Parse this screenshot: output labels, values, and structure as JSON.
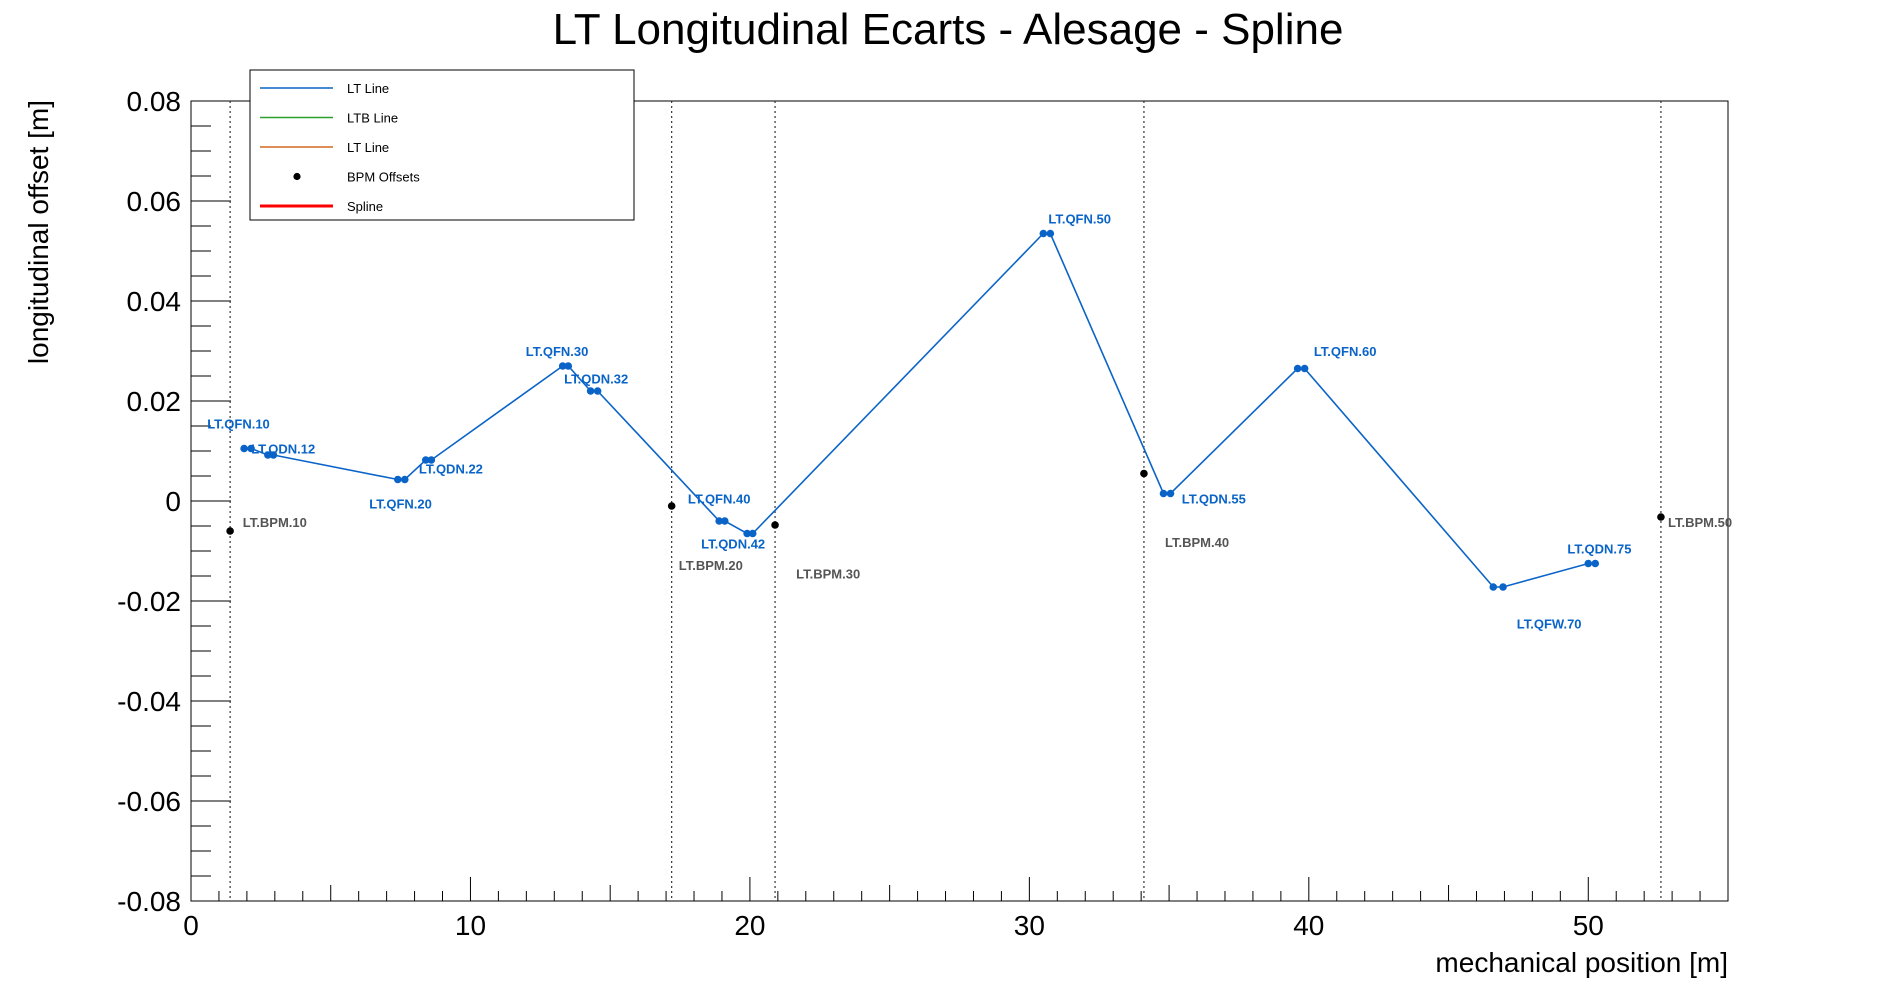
{
  "chart_data": {
    "type": "line",
    "title": "LT Longitudinal Ecarts - Alesage - Spline",
    "xlabel": "mechanical position [m]",
    "ylabel": "longitudinal offset [m]",
    "xlim": [
      0,
      55
    ],
    "ylim": [
      -0.08,
      0.08
    ],
    "x_ticks": [
      "0",
      "10",
      "20",
      "30",
      "40",
      "50"
    ],
    "y_ticks": [
      "-0.08",
      "-0.06",
      "-0.04",
      "-0.02",
      "0",
      "0.02",
      "0.04",
      "0.06",
      "0.08"
    ],
    "grid": false,
    "legend_position": "top-left",
    "legend": [
      {
        "name": "LT Line",
        "kind": "line",
        "color": "#0a64c8"
      },
      {
        "name": "LTB Line",
        "kind": "line",
        "color": "#2ca02c"
      },
      {
        "name": "LT Line",
        "kind": "line",
        "color": "#d2691e"
      },
      {
        "name": "BPM Offsets",
        "kind": "marker",
        "color": "#000000"
      },
      {
        "name": "Spline",
        "kind": "line",
        "color": "#ff0000"
      }
    ],
    "series": [
      {
        "name": "LT Line",
        "color": "#0a64c8",
        "x": [
          1.9,
          2.15,
          2.75,
          2.95,
          7.4,
          7.65,
          8.4,
          8.6,
          13.3,
          13.5,
          14.3,
          14.55,
          18.9,
          19.1,
          19.9,
          20.1,
          30.5,
          30.75,
          34.8,
          35.05,
          39.6,
          39.85,
          46.6,
          46.95,
          50.0,
          50.25
        ],
        "y": [
          0.0105,
          0.0105,
          0.0092,
          0.0092,
          0.0043,
          0.0043,
          0.0082,
          0.0082,
          0.027,
          0.027,
          0.022,
          0.022,
          -0.004,
          -0.004,
          -0.0065,
          -0.0065,
          0.0535,
          0.0535,
          0.0015,
          0.0015,
          0.0265,
          0.0265,
          -0.0172,
          -0.0172,
          -0.0125,
          -0.0125
        ]
      }
    ],
    "bpm_offsets": {
      "name": "BPM Offsets",
      "color": "#000000",
      "x": [
        1.4,
        17.2,
        20.9,
        34.1,
        52.6
      ],
      "y": [
        -0.006,
        -0.001,
        -0.0048,
        0.0055,
        -0.0032
      ]
    },
    "bpm_lines_x": [
      1.4,
      17.2,
      20.9,
      34.1,
      52.6
    ],
    "quad_labels": [
      {
        "text": "LT.QFN.10",
        "x": 1.7,
        "y": 0.0145
      },
      {
        "text": "LT.QDN.12",
        "x": 3.3,
        "y": 0.0095
      },
      {
        "text": "LT.QFN.20",
        "x": 7.5,
        "y": -0.0015
      },
      {
        "text": "LT.QDN.22",
        "x": 9.3,
        "y": 0.0055
      },
      {
        "text": "LT.QFN.30",
        "x": 13.1,
        "y": 0.029
      },
      {
        "text": "LT.QDN.32",
        "x": 14.5,
        "y": 0.0235
      },
      {
        "text": "LT.QFN.40",
        "x": 18.9,
        "y": -0.0005
      },
      {
        "text": "LT.QDN.42",
        "x": 19.4,
        "y": -0.0095
      },
      {
        "text": "LT.QFN.50",
        "x": 31.8,
        "y": 0.0555
      },
      {
        "text": "LT.QDN.55",
        "x": 36.6,
        "y": -0.0005
      },
      {
        "text": "LT.QFN.60",
        "x": 41.3,
        "y": 0.029
      },
      {
        "text": "LT.QFW.70",
        "x": 48.6,
        "y": -0.0255
      },
      {
        "text": "LT.QDN.75",
        "x": 50.4,
        "y": -0.0105
      }
    ],
    "bpm_labels": [
      {
        "text": "LT.BPM.10",
        "x": 3.0,
        "y": -0.0052
      },
      {
        "text": "LT.BPM.20",
        "x": 18.6,
        "y": -0.0138
      },
      {
        "text": "LT.BPM.30",
        "x": 22.8,
        "y": -0.0155
      },
      {
        "text": "LT.BPM.40",
        "x": 36.0,
        "y": -0.0092
      },
      {
        "text": "LT.BPM.50",
        "x": 54.0,
        "y": -0.0052
      }
    ]
  }
}
